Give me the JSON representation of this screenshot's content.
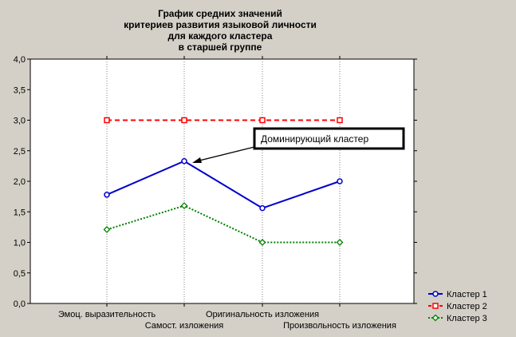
{
  "title_lines": [
    "График средних значений",
    "критериев развития языковой личности",
    "для  каждого кластера",
    "в старшей группе"
  ],
  "annotation": "Доминирующий кластер",
  "colors": {
    "background": "#d4d0c8",
    "plot_bg": "#ffffff",
    "cluster1": "#0000cc",
    "cluster2": "#ff0000",
    "cluster3": "#008000"
  },
  "chart_data": {
    "type": "line",
    "categories": [
      "Эмоц. выразительность",
      "Самост. изложения",
      "Оригинальность изложения",
      "Произвольность изложения"
    ],
    "series": [
      {
        "name": "Кластер 1",
        "values": [
          1.78,
          2.33,
          1.56,
          2.0
        ],
        "style": "solid",
        "marker": "circle"
      },
      {
        "name": "Кластер 2",
        "values": [
          3.0,
          3.0,
          3.0,
          3.0
        ],
        "style": "dashed",
        "marker": "square"
      },
      {
        "name": "Кластер 3",
        "values": [
          1.21,
          1.6,
          1.0,
          1.0
        ],
        "style": "dotted",
        "marker": "diamond"
      }
    ],
    "ylim": [
      0,
      4
    ],
    "yticks": [
      "0,0",
      "0,5",
      "1,0",
      "1,5",
      "2,0",
      "2,5",
      "3,0",
      "3,5",
      "4,0"
    ],
    "grid": "vertical dotted",
    "legend_position": "bottom-right"
  }
}
